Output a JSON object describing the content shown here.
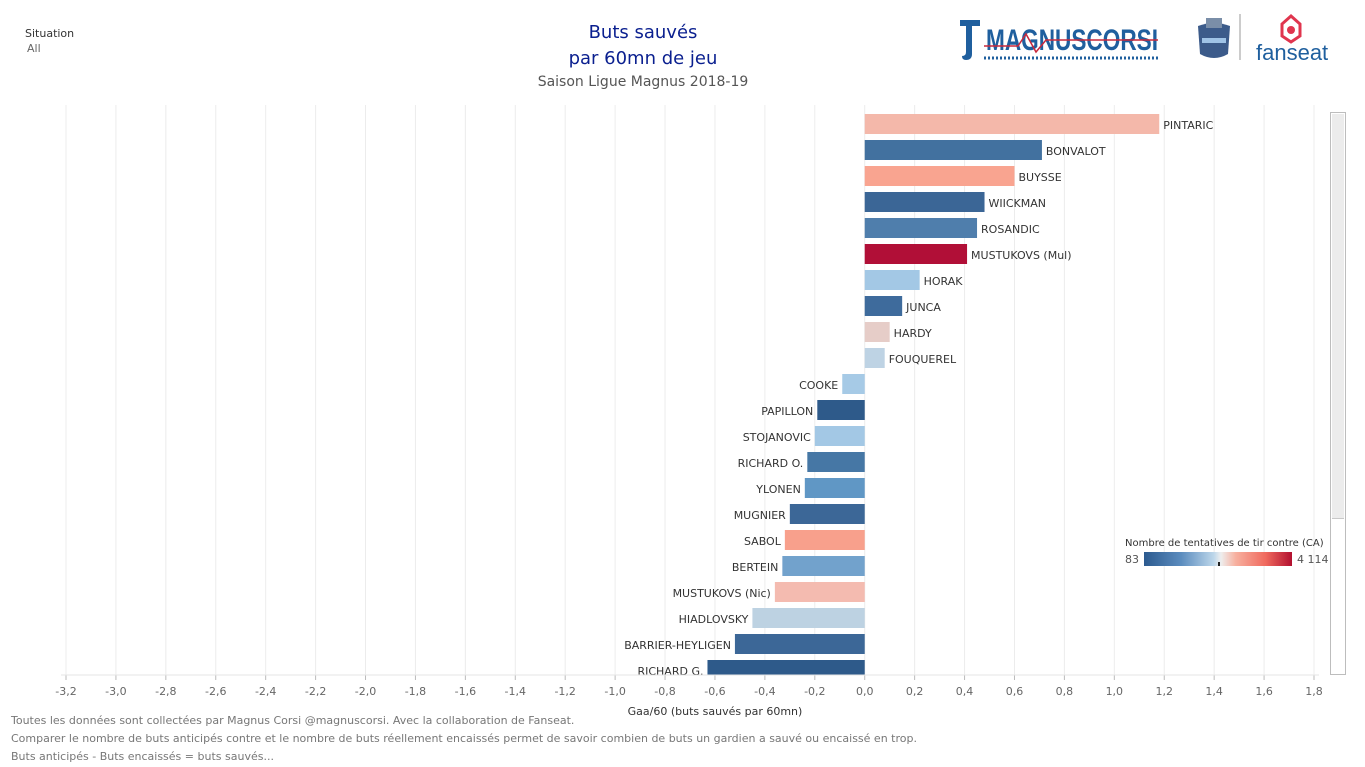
{
  "filter": {
    "label": "Situation",
    "value": "All"
  },
  "title": {
    "line1": "Buts sauvés",
    "line2": "par 60mn de jeu",
    "subtitle": "Saison Ligue Magnus 2018-19"
  },
  "logos": {
    "magnuscorsi": "MAGNUSCORSI",
    "fanseat": "fanseat"
  },
  "legend": {
    "title": "Nombre de tentatives de tir contre (CA)",
    "min": "83",
    "max": "4 114"
  },
  "footer": {
    "line1": "Toutes les données sont collectées par Magnus Corsi @magnuscorsi. Avec la collaboration de Fanseat.",
    "line2": "Comparer le nombre de buts anticipés contre et le nombre de buts réellement encaissés permet de savoir combien de buts un gardien a sauvé ou encaissé en trop.",
    "line3": "Buts anticipés - Buts encaissés = buts sauvés..."
  },
  "chart_data": {
    "type": "bar",
    "orientation": "horizontal",
    "xlabel": "Gaa/60 (buts sauvés par 60mn)",
    "xlim": [
      -3.2,
      1.8
    ],
    "xticks": [
      "-3,2",
      "-3,0",
      "-2,8",
      "-2,6",
      "-2,4",
      "-2,2",
      "-2,0",
      "-1,8",
      "-1,6",
      "-1,4",
      "-1,2",
      "-1,0",
      "-0,8",
      "-0,6",
      "-0,4",
      "-0,2",
      "0,0",
      "0,2",
      "0,4",
      "0,6",
      "0,8",
      "1,0",
      "1,2",
      "1,4",
      "1,6",
      "1,8"
    ],
    "grid": "vertical",
    "color_encoding": "Nombre de tentatives de tir contre (CA)",
    "categories": [
      "PINTARIC",
      "BONVALOT",
      "BUYSSE",
      "WIICKMAN",
      "ROSANDIC",
      "MUSTUKOVS (Mul)",
      "HORAK",
      "JUNCA",
      "HARDY",
      "FOUQUEREL",
      "COOKE",
      "PAPILLON",
      "STOJANOVIC",
      "RICHARD O.",
      "YLONEN",
      "MUGNIER",
      "SABOL",
      "BERTEIN",
      "MUSTUKOVS (Nic)",
      "HIADLOVSKY",
      "BARRIER-HEYLIGEN",
      "RICHARD G."
    ],
    "values": [
      1.18,
      0.71,
      0.6,
      0.48,
      0.45,
      0.41,
      0.22,
      0.15,
      0.1,
      0.08,
      -0.09,
      -0.19,
      -0.2,
      -0.23,
      -0.24,
      -0.3,
      -0.32,
      -0.33,
      -0.36,
      -0.45,
      -0.52,
      -0.63
    ],
    "colors": [
      "#f4b8aa",
      "#42719f",
      "#f9a490",
      "#3b6696",
      "#4f7eac",
      "#b10f37",
      "#a3c8e5",
      "#3e6b9c",
      "#e6cdc8",
      "#bed3e4",
      "#a6cae6",
      "#2e5a8a",
      "#a3c8e5",
      "#4677a5",
      "#6097c5",
      "#3c6797",
      "#f8a08c",
      "#72a2cc",
      "#f4bbb0",
      "#bdd2e2",
      "#3c6797",
      "#2e5a8a"
    ]
  }
}
